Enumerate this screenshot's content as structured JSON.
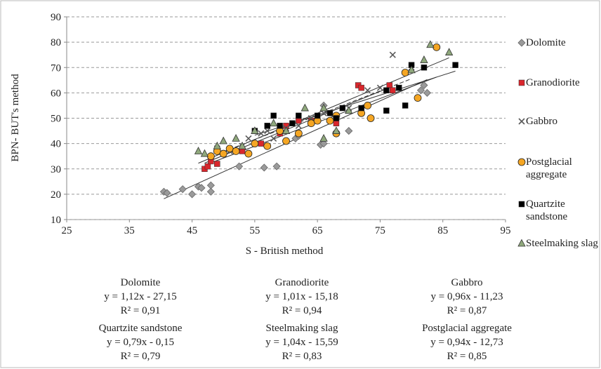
{
  "chart_data": {
    "type": "scatter",
    "xlabel": "S - British method",
    "ylabel": "BPN- BUT's method",
    "xlim": [
      25,
      95
    ],
    "xticks": [
      25,
      35,
      45,
      55,
      65,
      75,
      85,
      95
    ],
    "ylim": [
      10,
      90
    ],
    "yticks": [
      10,
      20,
      30,
      40,
      50,
      60,
      70,
      80,
      90
    ],
    "grid": true,
    "legend": "right",
    "series": [
      {
        "name": "Dolomite",
        "color": "#9a9a9a",
        "marker": "diamond",
        "x": [
          40.5,
          41,
          43.5,
          45,
          46,
          46.5,
          48,
          48,
          52.5,
          56.5,
          58.5,
          61.5,
          62,
          65.5,
          66,
          70,
          66,
          81.5,
          82.5,
          82
        ],
        "values": [
          21,
          20.5,
          22,
          20,
          23,
          22.5,
          23.5,
          21,
          31,
          30.5,
          31,
          42,
          43,
          39.5,
          40,
          45,
          55,
          61,
          60,
          63
        ],
        "trend": {
          "slope": 1.12,
          "intercept": -27.15,
          "equation": "y = 1,12x - 27,15",
          "r2": "R² = 0,91"
        }
      },
      {
        "name": "Granodiorite",
        "color": "#d9262c",
        "marker": "square",
        "x": [
          47,
          47.5,
          48,
          49,
          50,
          53,
          56,
          59,
          60,
          62,
          64,
          68,
          71.5,
          72,
          76.5,
          77
        ],
        "values": [
          30,
          31,
          33,
          32,
          36,
          37,
          40,
          44,
          47,
          49,
          49,
          48,
          63,
          62,
          63,
          61
        ],
        "trend": {
          "slope": 1.01,
          "intercept": -15.18,
          "equation": "y = 1,01x - 15,18",
          "r2": "R² = 0,94"
        }
      },
      {
        "name": "Gabbro",
        "color": "#5a5a5a",
        "marker": "x",
        "x": [
          49,
          51,
          53,
          54,
          56,
          57,
          58,
          60,
          62,
          64,
          66,
          70,
          72,
          73,
          75,
          77,
          78,
          80
        ],
        "values": [
          38,
          37,
          39,
          42,
          44,
          45,
          42,
          46,
          47,
          50,
          52,
          54,
          53,
          61,
          62,
          75,
          62,
          70
        ],
        "trend": {
          "slope": 0.96,
          "intercept": -11.23,
          "equation": "y = 0,96x - 11,23",
          "r2": "R² = 0,87"
        }
      },
      {
        "name": "Postglacial aggregate",
        "color": "#f5a623",
        "marker": "circle",
        "x": [
          48,
          49,
          50,
          51,
          52,
          54,
          55,
          57,
          59,
          60,
          62,
          64,
          65,
          67,
          68,
          68,
          72,
          73,
          73.5,
          79,
          81,
          84
        ],
        "values": [
          35,
          37,
          36,
          38,
          37,
          36,
          40,
          39,
          45,
          41,
          44,
          48,
          49,
          49,
          44,
          51,
          52,
          55,
          50,
          68,
          58,
          78
        ],
        "trend": {
          "slope": 0.94,
          "intercept": -12.73,
          "equation": "y = 0,94x - 12,73",
          "r2": "R² = 0,85"
        }
      },
      {
        "name": "Quartzite sandstone",
        "color": "#000000",
        "marker": "square",
        "x": [
          55,
          57,
          58,
          59,
          61,
          62,
          65,
          67,
          68,
          69,
          72,
          76,
          76,
          78,
          79,
          80,
          82,
          87
        ],
        "values": [
          45,
          47,
          51,
          47,
          48,
          51,
          51,
          52,
          50,
          54,
          54,
          61,
          53,
          62,
          55,
          71,
          70,
          71
        ],
        "trend": {
          "slope": 0.79,
          "intercept": -0.15,
          "equation": "y = 0,79x - 0,15",
          "r2": "R² = 0,79"
        }
      },
      {
        "name": "Steelmaking slag",
        "color": "#8fa87c",
        "marker": "triangle",
        "x": [
          46,
          47,
          49,
          50,
          52,
          53,
          55,
          58,
          60,
          63,
          66,
          66,
          68,
          70,
          80,
          82,
          83,
          86
        ],
        "values": [
          37,
          36,
          39,
          41,
          42,
          39,
          45,
          48,
          45,
          54,
          54,
          42,
          45,
          53,
          69,
          73,
          79,
          76
        ],
        "trend": {
          "slope": 1.04,
          "intercept": -15.59,
          "equation": "y = 1,04x - 15,59",
          "r2": "R² = 0,83"
        }
      }
    ]
  }
}
